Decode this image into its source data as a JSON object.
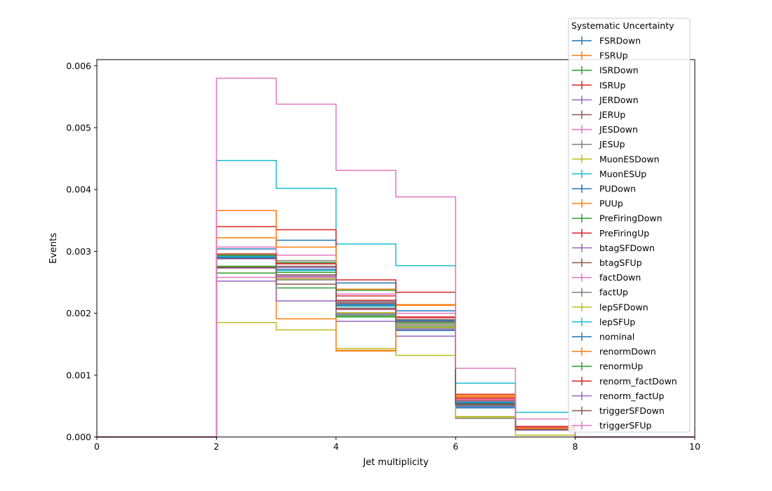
{
  "chart_data": {
    "type": "line",
    "drawstyle": "step-histogram",
    "xlabel": "Jet multiplicity",
    "ylabel": "Events",
    "xlim": [
      0,
      10
    ],
    "ylim": [
      0,
      0.0061
    ],
    "xticks": [
      0,
      2,
      4,
      6,
      8,
      10
    ],
    "yticks": [
      0.0,
      0.001,
      0.002,
      0.003,
      0.004,
      0.005,
      0.006
    ],
    "xtick_labels": [
      "0",
      "2",
      "4",
      "6",
      "8",
      "10"
    ],
    "ytick_labels": [
      "0.000",
      "0.001",
      "0.002",
      "0.003",
      "0.004",
      "0.005",
      "0.006"
    ],
    "grid": false,
    "legend": {
      "title": "Systematic Uncertainty",
      "placement": "top-right, outside plot area"
    },
    "bin_edges": [
      0,
      1,
      2,
      3,
      4,
      5,
      6,
      7,
      8,
      9,
      10
    ],
    "series": [
      {
        "name": "FSRDown",
        "color": "#1f77b4",
        "values": [
          0,
          0,
          0.00304,
          0.00318,
          0.00249,
          0.00204,
          0.00049,
          0.00011,
          0,
          0
        ]
      },
      {
        "name": "FSRUp",
        "color": "#ff7f0e",
        "values": [
          0,
          0,
          0.00322,
          0.00307,
          0.00239,
          0.00214,
          0.00065,
          0.00012,
          0,
          0
        ]
      },
      {
        "name": "ISRDown",
        "color": "#2ca02c",
        "values": [
          0,
          0,
          0.00265,
          0.00241,
          0.00237,
          0.00181,
          0.00053,
          0.00011,
          0,
          0
        ]
      },
      {
        "name": "ISRUp",
        "color": "#d62728",
        "values": [
          0,
          0,
          0.00293,
          0.0028,
          0.00228,
          0.00194,
          0.0006,
          0.00013,
          0,
          0
        ]
      },
      {
        "name": "JERDown",
        "color": "#9467bd",
        "values": [
          0,
          0,
          0.00288,
          0.00274,
          0.00218,
          0.00189,
          0.00058,
          0.00012,
          0,
          0
        ]
      },
      {
        "name": "JERUp",
        "color": "#8c564b",
        "values": [
          0,
          0,
          0.00289,
          0.00276,
          0.00216,
          0.00189,
          0.00055,
          0.00011,
          0,
          0
        ]
      },
      {
        "name": "JESDown",
        "color": "#e377c2",
        "values": [
          0,
          0,
          0.00258,
          0.00258,
          0.00206,
          0.00178,
          0.00054,
          0.00011,
          0,
          0
        ]
      },
      {
        "name": "JESUp",
        "color": "#7f7f7f",
        "values": [
          0,
          0,
          0.00294,
          0.00285,
          0.00219,
          0.0019,
          0.00057,
          0.00012,
          0,
          0
        ]
      },
      {
        "name": "MuonESDown",
        "color": "#bcbd22",
        "values": [
          0,
          0,
          0.00185,
          0.00173,
          0.00143,
          0.00132,
          0.00032,
          3e-05,
          0,
          0
        ]
      },
      {
        "name": "MuonESUp",
        "color": "#17becf",
        "values": [
          0,
          0,
          0.00447,
          0.00402,
          0.00312,
          0.00277,
          0.00087,
          0.0004,
          0,
          0
        ]
      },
      {
        "name": "PUDown",
        "color": "#1f77b4",
        "values": [
          0,
          0,
          0.00291,
          0.00269,
          0.00214,
          0.00172,
          0.00047,
          0.00011,
          0,
          0
        ]
      },
      {
        "name": "PUUp",
        "color": "#ff7f0e",
        "values": [
          0,
          0,
          0.00366,
          0.00191,
          0.0014,
          0.00213,
          0.00062,
          0.00012,
          0,
          0
        ]
      },
      {
        "name": "PreFiringDown",
        "color": "#2ca02c",
        "values": [
          0,
          0,
          0.00294,
          0.00282,
          0.00196,
          0.00178,
          0.00055,
          0.00012,
          0,
          0
        ]
      },
      {
        "name": "PreFiringUp",
        "color": "#d62728",
        "values": [
          0,
          0,
          0.0034,
          0.00335,
          0.00254,
          0.00234,
          0.00069,
          0.00017,
          0,
          0
        ]
      },
      {
        "name": "btagSFDown",
        "color": "#9467bd",
        "values": [
          0,
          0,
          0.00252,
          0.0022,
          0.00187,
          0.00163,
          0.00051,
          0.00011,
          0,
          0
        ]
      },
      {
        "name": "btagSFUp",
        "color": "#8c564b",
        "values": [
          0,
          0,
          0.00274,
          0.00262,
          0.00208,
          0.00181,
          0.00054,
          0.00011,
          0,
          0
        ]
      },
      {
        "name": "factDown",
        "color": "#e377c2",
        "values": [
          0,
          0,
          0.00307,
          0.00294,
          0.00231,
          0.002,
          0.00061,
          0.00013,
          0,
          0
        ]
      },
      {
        "name": "factUp",
        "color": "#7f7f7f",
        "values": [
          0,
          0,
          0.00275,
          0.00254,
          0.002,
          0.00176,
          0.0003,
          0.00011,
          0,
          0
        ]
      },
      {
        "name": "lepSFDown",
        "color": "#bcbd22",
        "values": [
          0,
          0,
          0.00276,
          0.00256,
          0.00201,
          0.00177,
          0.00033,
          0.00011,
          0,
          0
        ]
      },
      {
        "name": "lepSFUp",
        "color": "#17becf",
        "values": [
          0,
          0,
          0.00292,
          0.00269,
          0.00211,
          0.00186,
          0.00056,
          0.00012,
          0,
          0
        ]
      },
      {
        "name": "nominal",
        "color": "#1f77b4",
        "values": [
          0,
          0,
          0.0029,
          0.00271,
          0.00213,
          0.00188,
          0.00055,
          0.00012,
          0,
          0
        ]
      },
      {
        "name": "renormDown",
        "color": "#ff7f0e",
        "values": [
          0,
          0,
          0.00366,
          0.00307,
          0.00139,
          0.00213,
          0.00067,
          0.00014,
          0,
          0
        ]
      },
      {
        "name": "renormUp",
        "color": "#2ca02c",
        "values": [
          0,
          0,
          0.00276,
          0.00266,
          0.00194,
          0.00184,
          0.00052,
          0.00011,
          0,
          0
        ]
      },
      {
        "name": "renorm_factDown",
        "color": "#d62728",
        "values": [
          0,
          0,
          0.00296,
          0.0028,
          0.00221,
          0.00193,
          0.00063,
          0.00016,
          0,
          0
        ]
      },
      {
        "name": "renorm_factUp",
        "color": "#9467bd",
        "values": [
          0,
          0,
          0.00273,
          0.0026,
          0.00198,
          0.00174,
          0.0005,
          0.00011,
          0,
          0
        ]
      },
      {
        "name": "triggerSFDown",
        "color": "#8c564b",
        "values": [
          0,
          0,
          0.00274,
          0.00247,
          0.00207,
          0.00186,
          0.00053,
          0.00012,
          0,
          0
        ]
      },
      {
        "name": "triggerSFUp",
        "color": "#e377c2",
        "values": [
          0,
          0,
          0.0058,
          0.00538,
          0.00431,
          0.00388,
          0.00111,
          0.00029,
          0,
          0
        ]
      }
    ]
  }
}
